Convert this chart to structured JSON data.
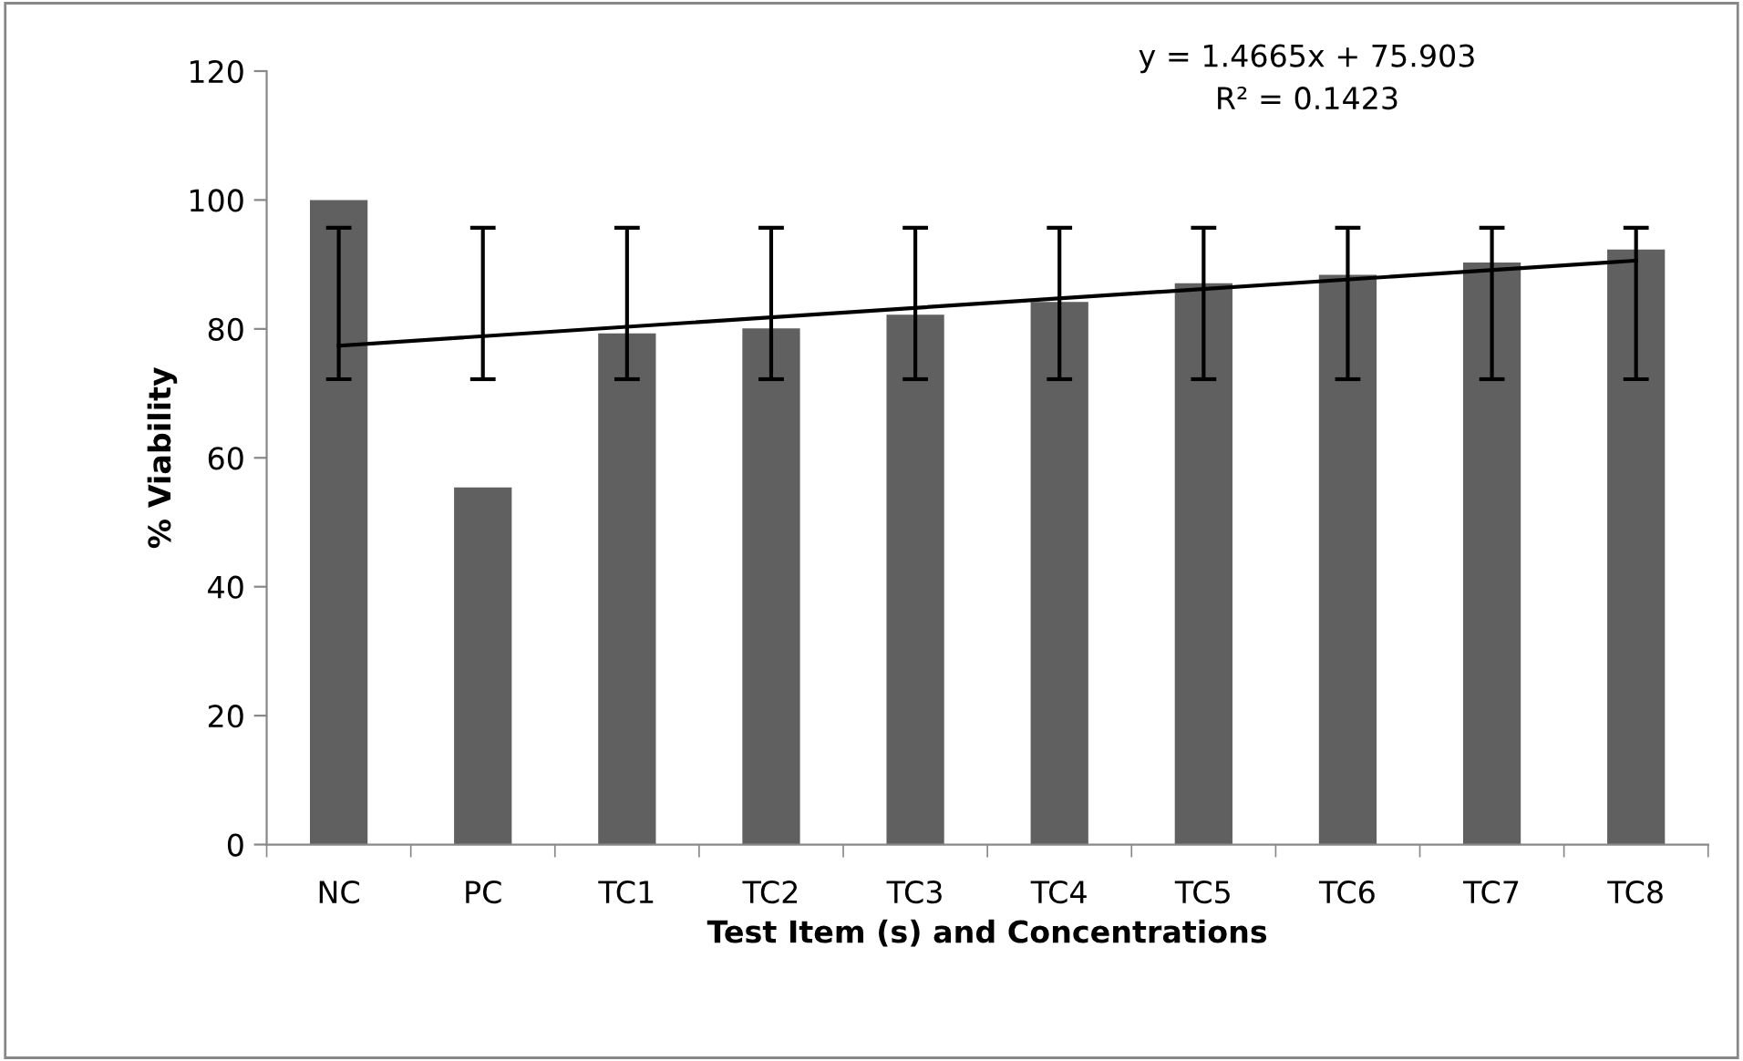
{
  "chart_data": {
    "type": "bar",
    "xlabel": "Test Item (s) and Concentrations",
    "ylabel": "% Viability",
    "categories": [
      "NC",
      "PC",
      "TC1",
      "TC2",
      "TC3",
      "TC4",
      "TC5",
      "TC6",
      "TC7",
      "TC8"
    ],
    "series": [
      {
        "color": "#606060",
        "values": [
          100,
          55.4,
          79.3,
          80.1,
          82.2,
          84.2,
          87.1,
          88.4,
          90.3,
          92.3
        ],
        "errors": [
          [
            72.2,
            95.7
          ],
          [
            72.2,
            95.7
          ],
          [
            72.2,
            95.7
          ],
          [
            72.2,
            95.7
          ],
          [
            72.2,
            95.7
          ],
          [
            72.2,
            95.7
          ],
          [
            72.2,
            95.7
          ],
          [
            72.2,
            95.7
          ],
          [
            72.2,
            95.7
          ],
          [
            72.2,
            95.7
          ]
        ]
      },
      {
        "type": "line",
        "color": "#000000",
        "x": [
          "NC",
          "TC8"
        ],
        "values": [
          77.4,
          90.6
        ]
      }
    ],
    "ylim": [
      0,
      120
    ],
    "yticks": [
      0,
      20,
      40,
      60,
      80,
      100,
      120
    ],
    "grid": false,
    "legend": false,
    "annotations": [
      "y = 1.4665x + 75.903",
      "R² = 0.1423"
    ]
  }
}
